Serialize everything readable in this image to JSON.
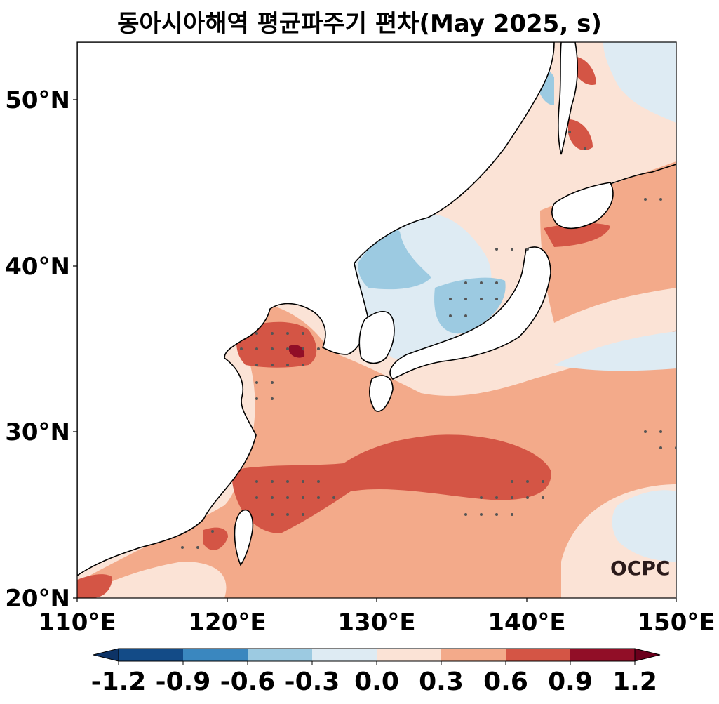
{
  "title": "동아시아해역 평균파주기 편차(May 2025, s)",
  "axes": {
    "x_ticks": [
      "110°E",
      "120°E",
      "130°E",
      "140°E",
      "150°E"
    ],
    "y_ticks": [
      "20°N",
      "30°N",
      "40°N",
      "50°N"
    ]
  },
  "colorbar": {
    "ticks": [
      "-1.2",
      "-0.9",
      "-0.6",
      "-0.3",
      "0.0",
      "0.3",
      "0.6",
      "0.9",
      "1.2"
    ],
    "colors": [
      "#134b87",
      "#3a87bf",
      "#9ccae1",
      "#deebf3",
      "#fbe3d6",
      "#f3aa8a",
      "#d45545",
      "#910e27"
    ],
    "extend_low": "#0d3366",
    "extend_high": "#6a001c"
  },
  "logo": "OCPC",
  "chart_data": {
    "type": "heatmap",
    "title": "동아시아해역 평균파주기 편차(May 2025, s)",
    "x_range": [
      110,
      150
    ],
    "y_range": [
      20,
      53.5
    ],
    "x_ticks": [
      110,
      120,
      130,
      140,
      150
    ],
    "y_ticks": [
      20,
      30,
      40,
      50
    ],
    "levels": [
      -1.2,
      -0.9,
      -0.6,
      -0.3,
      0.0,
      0.3,
      0.6,
      0.9,
      1.2
    ],
    "unit": "s"
  }
}
